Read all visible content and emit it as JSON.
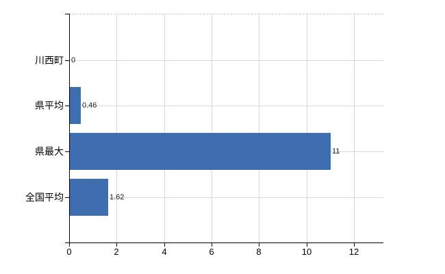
{
  "chart_data": {
    "type": "bar",
    "orientation": "horizontal",
    "title": "",
    "categories": [
      "川西町",
      "県平均",
      "県最大",
      "全国平均"
    ],
    "values": [
      0,
      0.46,
      11,
      1.62
    ],
    "value_labels": [
      "0",
      "0.46",
      "11",
      "1.62"
    ],
    "x_axis": {
      "tick_values": [
        0,
        2,
        4,
        6,
        8,
        10,
        12
      ],
      "tick_labels": [
        "0",
        "2",
        "4",
        "6",
        "8",
        "10",
        "12"
      ],
      "range": [
        0,
        13.25
      ]
    },
    "y_axis": {
      "label": ""
    },
    "grid": true,
    "legend": false,
    "colors": {
      "bar": "#3e6db0",
      "gridline": "#d6dcd4",
      "plot_top_border": "#cccccc",
      "axis": "#000000",
      "tick_text": "#000000",
      "value_text": "#1c1c1c",
      "background": "#ffffff"
    }
  }
}
